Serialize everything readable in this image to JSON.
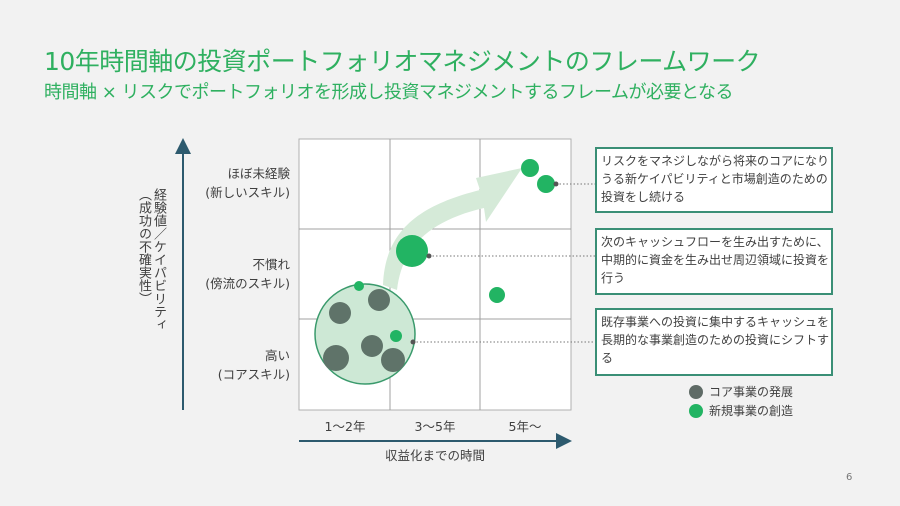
{
  "header": {
    "title": "10年時間軸の投資ポートフォリオマネジメントのフレームワーク",
    "subtitle": "時間軸 × リスクでポートフォリオを形成し投資マネジメントするフレームが必要となる"
  },
  "chart": {
    "y_axis_title": "経験値／ケイパビリティ（成功の不確実性）",
    "y_axis_title_line1": "経験値／ケイパビリティ",
    "y_axis_title_line2": "（成功の不確実性）",
    "y_labels": [
      {
        "l1": "ほぼ未経験",
        "l2": "(新しいスキル)"
      },
      {
        "l1": "不慣れ",
        "l2": "(傍流のスキル)"
      },
      {
        "l1": "高い",
        "l2": "(コアスキル)"
      }
    ],
    "x_labels": [
      "1〜2年",
      "3〜5年",
      "5年〜"
    ],
    "x_axis_title": "収益化までの時間"
  },
  "callouts": [
    "リスクをマネジしながら将来のコアになりうる新ケイパビリティと市場創造のための投資をし続ける",
    "次のキャッシュフローを生み出すために、中期的に資金を生み出せ周辺領域に投資を行う",
    "既存事業への投資に集中するキャッシュを長期的な事業創造のための投資にシフトする"
  ],
  "legend": [
    {
      "label": "コア事業の発展",
      "color": "#5f6b66"
    },
    {
      "label": "新規事業の創造",
      "color": "#22b463"
    }
  ],
  "page_number": "6"
}
